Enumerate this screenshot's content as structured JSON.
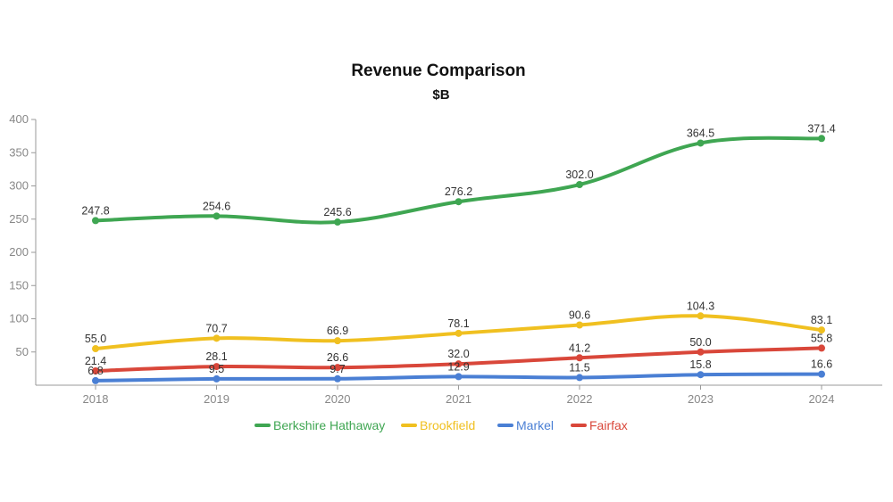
{
  "chart_data": {
    "type": "line",
    "title": "Revenue Comparison",
    "subtitle": "$B",
    "xlabel": "",
    "ylabel": "",
    "categories": [
      "2018",
      "2019",
      "2020",
      "2021",
      "2022",
      "2023",
      "2024"
    ],
    "ylim": [
      0,
      400
    ],
    "yticks": [
      50,
      100,
      150,
      200,
      250,
      300,
      350,
      400
    ],
    "grid": false,
    "legend_position": "bottom",
    "series": [
      {
        "name": "Berkshire Hathaway",
        "color": "#3fa652",
        "values": [
          247.8,
          254.6,
          245.6,
          276.2,
          302.0,
          364.5,
          371.4
        ],
        "labels": [
          "247.8",
          "254.6",
          "245.6",
          "276.2",
          "302.0",
          "364.5",
          "371.4"
        ]
      },
      {
        "name": "Brookfield",
        "color": "#f0c020",
        "values": [
          55.0,
          70.7,
          66.9,
          78.1,
          90.6,
          104.3,
          83.1
        ],
        "labels": [
          "55.0",
          "70.7",
          "66.9",
          "78.1",
          "90.6",
          "104.3",
          "83.1"
        ]
      },
      {
        "name": "Markel",
        "color": "#4a7fd4",
        "values": [
          6.8,
          9.5,
          9.7,
          12.9,
          11.5,
          15.8,
          16.6
        ],
        "labels": [
          "6.8",
          "9.5",
          "9.7",
          "12.9",
          "11.5",
          "15.8",
          "16.6"
        ]
      },
      {
        "name": "Fairfax",
        "color": "#d9473a",
        "values": [
          21.4,
          28.1,
          26.6,
          32.0,
          41.2,
          50.0,
          55.8
        ],
        "labels": [
          "21.4",
          "28.1",
          "26.6",
          "32.0",
          "41.2",
          "50.0",
          "55.8"
        ]
      }
    ]
  }
}
